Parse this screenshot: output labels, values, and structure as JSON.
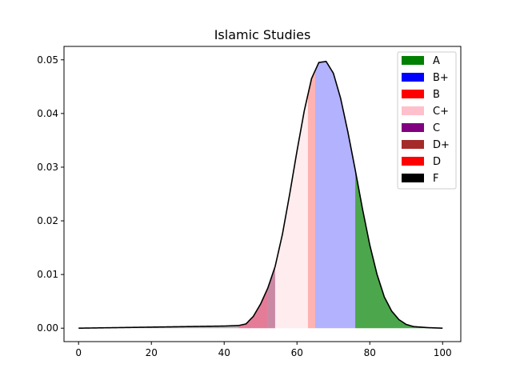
{
  "chart_data": {
    "type": "area",
    "title": "Islamic Studies",
    "xlabel": "",
    "ylabel": "",
    "xlim": [
      -4,
      105
    ],
    "ylim": [
      -0.0025,
      0.0525
    ],
    "xticks": [
      0,
      20,
      40,
      60,
      80,
      100
    ],
    "yticks": [
      0.0,
      0.01,
      0.02,
      0.03,
      0.04,
      0.05
    ],
    "ytick_labels": [
      "0.00",
      "0.01",
      "0.02",
      "0.03",
      "0.04",
      "0.05"
    ],
    "grid": false,
    "legend_position": "top-right",
    "curve": {
      "x": [
        0,
        10,
        20,
        30,
        40,
        44,
        46,
        48,
        50,
        52,
        54,
        56,
        58,
        60,
        62,
        64,
        66,
        68,
        70,
        72,
        74,
        76,
        78,
        80,
        82,
        84,
        86,
        88,
        90,
        92,
        94,
        96,
        98,
        100
      ],
      "y": [
        0.0,
        0.0001,
        0.0002,
        0.0003,
        0.0004,
        0.0005,
        0.0008,
        0.0022,
        0.0045,
        0.0075,
        0.0115,
        0.0175,
        0.025,
        0.033,
        0.0405,
        0.0465,
        0.0495,
        0.0497,
        0.0475,
        0.0428,
        0.0365,
        0.0295,
        0.0222,
        0.0155,
        0.01,
        0.0058,
        0.0032,
        0.0016,
        0.0007,
        0.0003,
        0.0002,
        0.0001,
        5e-05,
        0.0
      ]
    },
    "bands": [
      {
        "label": "A",
        "from": 76,
        "to": 100,
        "color": "#008000",
        "fill_alpha": 0.7
      },
      {
        "label": "B+",
        "from": 65,
        "to": 76,
        "color": "#0000ff",
        "fill_alpha": 0.3
      },
      {
        "label": "B",
        "from": 63,
        "to": 65,
        "color": "#ff0000",
        "fill_alpha": 0.3
      },
      {
        "label": "C+",
        "from": 54,
        "to": 63,
        "color": "#ffc0cb",
        "fill_alpha": 0.3
      },
      {
        "label": "C",
        "from": 44,
        "to": 54,
        "color": "#800080",
        "fill_alpha": 0.3
      },
      {
        "label": "D+",
        "from": 52,
        "to": 54,
        "color": "#a52a2a",
        "fill_alpha": 0.3
      },
      {
        "label": "D",
        "from": 44,
        "to": 52,
        "color": "#ff0000",
        "fill_alpha": 0.3
      },
      {
        "label": "F",
        "from": 0,
        "to": 44,
        "color": "#000000",
        "fill_alpha": 0.3
      }
    ],
    "legend": [
      {
        "label": "A",
        "color": "#008000"
      },
      {
        "label": "B+",
        "color": "#0000ff"
      },
      {
        "label": "B",
        "color": "#ff0000"
      },
      {
        "label": "C+",
        "color": "#ffc0cb"
      },
      {
        "label": "C",
        "color": "#800080"
      },
      {
        "label": "D+",
        "color": "#a52a2a"
      },
      {
        "label": "D",
        "color": "#ff0000"
      },
      {
        "label": "F",
        "color": "#000000"
      }
    ]
  }
}
